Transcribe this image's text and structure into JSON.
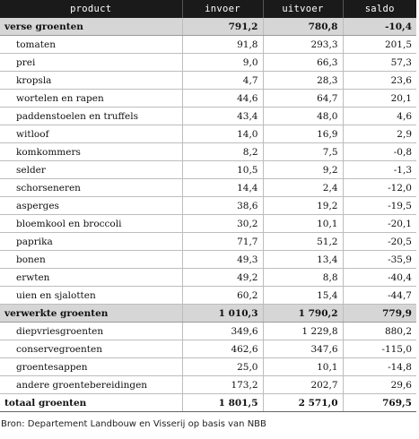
{
  "header": [
    "product",
    "invoer",
    "uitvoer",
    "saldo"
  ],
  "rows": [
    {
      "type": "group",
      "product": "verse groenten",
      "invoer": "791,2",
      "uitvoer": "780,8",
      "saldo": "-10,4"
    },
    {
      "type": "item",
      "product": "tomaten",
      "invoer": "91,8",
      "uitvoer": "293,3",
      "saldo": "201,5"
    },
    {
      "type": "item",
      "product": "prei",
      "invoer": "9,0",
      "uitvoer": "66,3",
      "saldo": "57,3"
    },
    {
      "type": "item",
      "product": "kropsla",
      "invoer": "4,7",
      "uitvoer": "28,3",
      "saldo": "23,6"
    },
    {
      "type": "item",
      "product": "wortelen en rapen",
      "invoer": "44,6",
      "uitvoer": "64,7",
      "saldo": "20,1"
    },
    {
      "type": "item",
      "product": "paddenstoelen en truffels",
      "invoer": "43,4",
      "uitvoer": "48,0",
      "saldo": "4,6"
    },
    {
      "type": "item",
      "product": "witloof",
      "invoer": "14,0",
      "uitvoer": "16,9",
      "saldo": "2,9"
    },
    {
      "type": "item",
      "product": "komkommers",
      "invoer": "8,2",
      "uitvoer": "7,5",
      "saldo": "-0,8"
    },
    {
      "type": "item",
      "product": "selder",
      "invoer": "10,5",
      "uitvoer": "9,2",
      "saldo": "-1,3"
    },
    {
      "type": "item",
      "product": "schorseneren",
      "invoer": "14,4",
      "uitvoer": "2,4",
      "saldo": "-12,0"
    },
    {
      "type": "item",
      "product": "asperges",
      "invoer": "38,6",
      "uitvoer": "19,2",
      "saldo": "-19,5"
    },
    {
      "type": "item",
      "product": "bloemkool en broccoli",
      "invoer": "30,2",
      "uitvoer": "10,1",
      "saldo": "-20,1"
    },
    {
      "type": "item",
      "product": "paprika",
      "invoer": "71,7",
      "uitvoer": "51,2",
      "saldo": "-20,5"
    },
    {
      "type": "item",
      "product": "bonen",
      "invoer": "49,3",
      "uitvoer": "13,4",
      "saldo": "-35,9"
    },
    {
      "type": "item",
      "product": "erwten",
      "invoer": "49,2",
      "uitvoer": "8,8",
      "saldo": "-40,4"
    },
    {
      "type": "item",
      "product": "uien en sjalotten",
      "invoer": "60,2",
      "uitvoer": "15,4",
      "saldo": "-44,7"
    },
    {
      "type": "group",
      "product": "verwerkte groenten",
      "invoer": "1 010,3",
      "uitvoer": "1 790,2",
      "saldo": "779,9"
    },
    {
      "type": "item",
      "product": "diepvriesgroenten",
      "invoer": "349,6",
      "uitvoer": "1 229,8",
      "saldo": "880,2"
    },
    {
      "type": "item",
      "product": "conservegroenten",
      "invoer": "462,6",
      "uitvoer": "347,6",
      "saldo": "-115,0"
    },
    {
      "type": "item",
      "product": "groentesappen",
      "invoer": "25,0",
      "uitvoer": "10,1",
      "saldo": "-14,8"
    },
    {
      "type": "item",
      "product": "andere groentebereidingen",
      "invoer": "173,2",
      "uitvoer": "202,7",
      "saldo": "29,6"
    },
    {
      "type": "total",
      "product": "totaal groenten",
      "invoer": "1 801,5",
      "uitvoer": "2 571,0",
      "saldo": "769,5"
    }
  ],
  "source": "Bron: Departement Landbouw en Visserij op basis van NBB"
}
